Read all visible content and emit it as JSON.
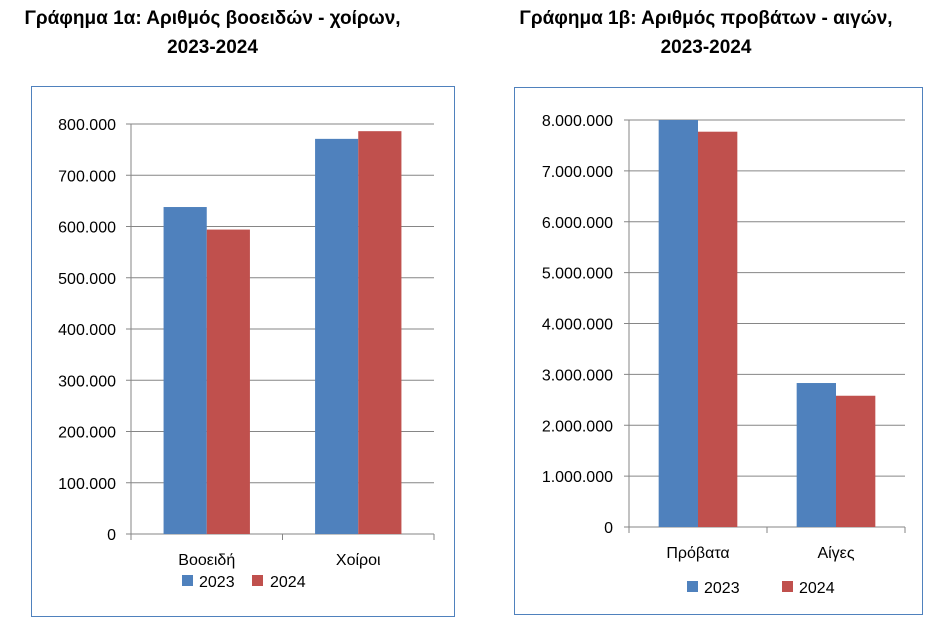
{
  "chart_data": [
    {
      "type": "bar",
      "title": "Γράφημα 1α: Αριθμός βοοειδών - χοίρων,\n2023-2024",
      "categories": [
        "Βοοειδή",
        "Χοίροι"
      ],
      "series": [
        {
          "name": "2023",
          "values": [
            638000,
            771000
          ],
          "color": "#4f81bd"
        },
        {
          "name": "2024",
          "values": [
            594000,
            786000
          ],
          "color": "#c0504d"
        }
      ],
      "ylim": [
        0,
        800000
      ],
      "yticks": [
        0,
        100000,
        200000,
        300000,
        400000,
        500000,
        600000,
        700000,
        800000
      ],
      "ytick_labels": [
        "0",
        "100.000",
        "200.000",
        "300.000",
        "400.000",
        "500.000",
        "600.000",
        "700.000",
        "800.000"
      ],
      "grid": true,
      "legend_position": "bottom"
    },
    {
      "type": "bar",
      "title": "Γράφημα 1β: Αριθμός προβάτων - αιγών,\n2023-2024",
      "categories": [
        "Πρόβατα",
        "Αίγες"
      ],
      "series": [
        {
          "name": "2023",
          "values": [
            8000000,
            2830000
          ],
          "color": "#4f81bd"
        },
        {
          "name": "2024",
          "values": [
            7770000,
            2580000
          ],
          "color": "#c0504d"
        }
      ],
      "ylim": [
        0,
        8000000
      ],
      "yticks": [
        0,
        1000000,
        2000000,
        3000000,
        4000000,
        5000000,
        6000000,
        7000000,
        8000000
      ],
      "ytick_labels": [
        "0",
        "1.000.000",
        "2.000.000",
        "3.000.000",
        "4.000.000",
        "5.000.000",
        "6.000.000",
        "7.000.000",
        "8.000.000"
      ],
      "grid": true,
      "legend_position": "bottom"
    }
  ]
}
